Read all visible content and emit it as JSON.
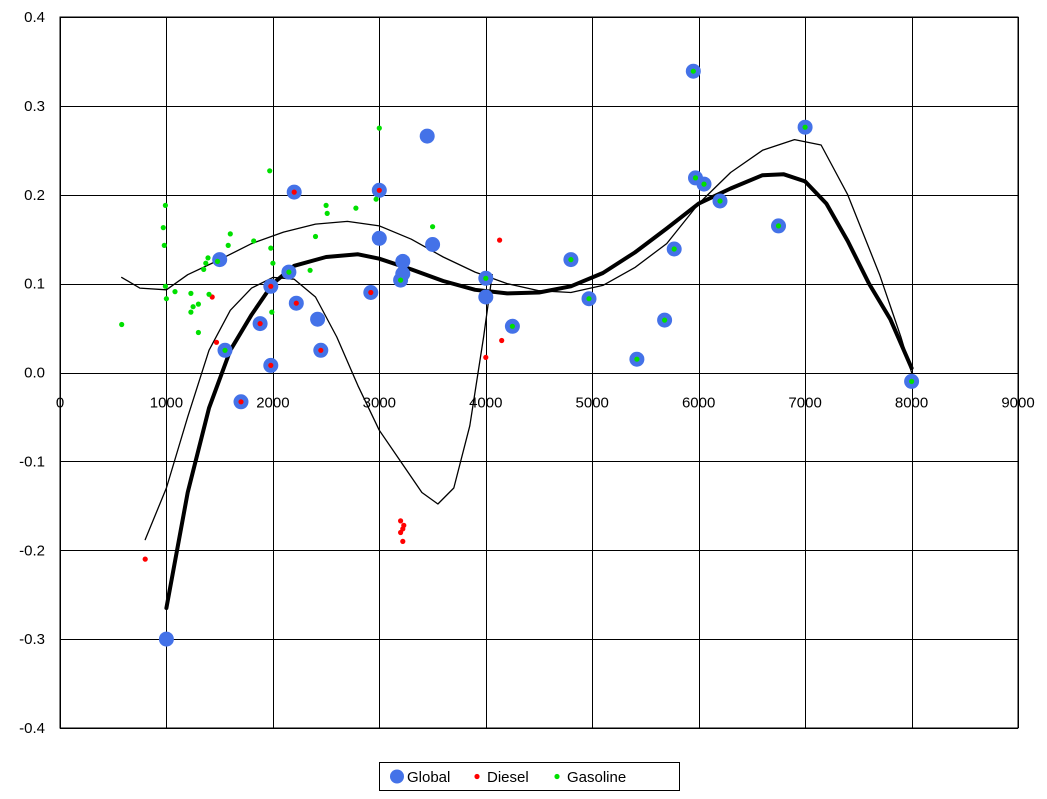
{
  "chart_data": {
    "type": "scatter",
    "title": "",
    "xlabel": "",
    "ylabel": "",
    "xlim": [
      0,
      9000
    ],
    "ylim": [
      -0.4,
      0.4
    ],
    "xticks": [
      0,
      1000,
      2000,
      3000,
      4000,
      5000,
      6000,
      7000,
      8000,
      9000
    ],
    "xtick_labels": [
      "0",
      "1000",
      "2000",
      "3000",
      "4000",
      "5000",
      "6000",
      "7000",
      "8000",
      "9000"
    ],
    "yticks": [
      -0.4,
      -0.3,
      -0.2,
      -0.1,
      0.0,
      0.1,
      0.2,
      0.3,
      0.4
    ],
    "ytick_labels": [
      "-0.4",
      "-0.3",
      "-0.2",
      "-0.1",
      "0.0",
      "0.1",
      "0.2",
      "0.3",
      "0.4"
    ],
    "grid": true,
    "legend_position": "bottom",
    "series": [
      {
        "name": "Global",
        "color": "#4472e8",
        "marker": "large-dot",
        "points": [
          [
            1000,
            -0.3
          ],
          [
            1500,
            0.127
          ],
          [
            1550,
            0.025
          ],
          [
            1700,
            -0.033
          ],
          [
            1880,
            0.055
          ],
          [
            1980,
            0.097
          ],
          [
            1980,
            0.008
          ],
          [
            2150,
            0.113
          ],
          [
            2200,
            0.203
          ],
          [
            2220,
            0.078
          ],
          [
            2420,
            0.06
          ],
          [
            2450,
            0.025
          ],
          [
            2920,
            0.09
          ],
          [
            3000,
            0.205
          ],
          [
            3000,
            0.151
          ],
          [
            3200,
            0.104
          ],
          [
            3220,
            0.125
          ],
          [
            3220,
            0.111
          ],
          [
            3450,
            0.266
          ],
          [
            3500,
            0.144
          ],
          [
            4000,
            0.106
          ],
          [
            4000,
            0.085
          ],
          [
            4250,
            0.052
          ],
          [
            4800,
            0.127
          ],
          [
            4970,
            0.083
          ],
          [
            5420,
            0.015
          ],
          [
            5680,
            0.059
          ],
          [
            5770,
            0.139
          ],
          [
            5950,
            0.339
          ],
          [
            5970,
            0.219
          ],
          [
            6050,
            0.212
          ],
          [
            6200,
            0.193
          ],
          [
            6750,
            0.165
          ],
          [
            7000,
            0.276
          ],
          [
            8000,
            -0.01
          ]
        ]
      },
      {
        "name": "Diesel",
        "color": "#ff0000",
        "marker": "small-dot",
        "points": [
          [
            800,
            -0.21
          ],
          [
            1430,
            0.085
          ],
          [
            1470,
            0.034
          ],
          [
            1700,
            -0.033
          ],
          [
            1880,
            0.055
          ],
          [
            1980,
            0.097
          ],
          [
            1980,
            0.008
          ],
          [
            2200,
            0.203
          ],
          [
            2220,
            0.078
          ],
          [
            2450,
            0.025
          ],
          [
            2920,
            0.09
          ],
          [
            3000,
            0.205
          ],
          [
            3200,
            -0.167
          ],
          [
            3200,
            -0.18
          ],
          [
            3220,
            -0.176
          ],
          [
            3220,
            -0.19
          ],
          [
            3230,
            -0.172
          ],
          [
            4000,
            0.017
          ],
          [
            4130,
            0.149
          ],
          [
            4150,
            0.036
          ]
        ]
      },
      {
        "name": "Gasoline",
        "color": "#00e000",
        "marker": "small-dot",
        "points": [
          [
            580,
            0.054
          ],
          [
            970,
            0.163
          ],
          [
            980,
            0.143
          ],
          [
            990,
            0.188
          ],
          [
            990,
            0.097
          ],
          [
            1000,
            0.083
          ],
          [
            1080,
            0.091
          ],
          [
            1230,
            0.089
          ],
          [
            1230,
            0.068
          ],
          [
            1250,
            0.074
          ],
          [
            1300,
            0.077
          ],
          [
            1300,
            0.045
          ],
          [
            1350,
            0.116
          ],
          [
            1370,
            0.123
          ],
          [
            1390,
            0.129
          ],
          [
            1400,
            0.088
          ],
          [
            1480,
            0.125
          ],
          [
            1550,
            0.025
          ],
          [
            1580,
            0.143
          ],
          [
            1600,
            0.156
          ],
          [
            1820,
            0.148
          ],
          [
            1970,
            0.227
          ],
          [
            1980,
            0.14
          ],
          [
            2000,
            0.123
          ],
          [
            1990,
            0.068
          ],
          [
            2150,
            0.113
          ],
          [
            2350,
            0.115
          ],
          [
            2400,
            0.153
          ],
          [
            2500,
            0.188
          ],
          [
            2510,
            0.179
          ],
          [
            2780,
            0.185
          ],
          [
            2970,
            0.195
          ],
          [
            3000,
            0.275
          ],
          [
            3200,
            0.104
          ],
          [
            3500,
            0.164
          ],
          [
            4000,
            0.106
          ],
          [
            4250,
            0.052
          ],
          [
            4800,
            0.127
          ],
          [
            4970,
            0.083
          ],
          [
            5420,
            0.015
          ],
          [
            5680,
            0.059
          ],
          [
            5770,
            0.139
          ],
          [
            5950,
            0.339
          ],
          [
            5970,
            0.219
          ],
          [
            6050,
            0.212
          ],
          [
            6200,
            0.193
          ],
          [
            6750,
            0.165
          ],
          [
            7000,
            0.276
          ],
          [
            8000,
            -0.01
          ]
        ]
      }
    ],
    "trendlines": [
      {
        "style": "thick",
        "color": "#000000",
        "points": [
          [
            1000,
            -0.265
          ],
          [
            1200,
            -0.135
          ],
          [
            1400,
            -0.04
          ],
          [
            1600,
            0.025
          ],
          [
            1800,
            0.065
          ],
          [
            2000,
            0.1
          ],
          [
            2200,
            0.12
          ],
          [
            2500,
            0.13
          ],
          [
            2800,
            0.133
          ],
          [
            3000,
            0.128
          ],
          [
            3300,
            0.116
          ],
          [
            3600,
            0.103
          ],
          [
            3900,
            0.093
          ],
          [
            4200,
            0.089
          ],
          [
            4500,
            0.09
          ],
          [
            4800,
            0.097
          ],
          [
            5100,
            0.112
          ],
          [
            5400,
            0.135
          ],
          [
            5700,
            0.162
          ],
          [
            6000,
            0.19
          ],
          [
            6300,
            0.207
          ],
          [
            6600,
            0.222
          ],
          [
            6800,
            0.223
          ],
          [
            7000,
            0.215
          ],
          [
            7200,
            0.19
          ],
          [
            7400,
            0.148
          ],
          [
            7600,
            0.1
          ],
          [
            7800,
            0.06
          ],
          [
            8000,
            0.005
          ]
        ]
      },
      {
        "style": "thin",
        "color": "#000000",
        "points": [
          [
            800,
            -0.188
          ],
          [
            1000,
            -0.13
          ],
          [
            1200,
            -0.05
          ],
          [
            1400,
            0.025
          ],
          [
            1600,
            0.07
          ],
          [
            1800,
            0.095
          ],
          [
            2000,
            0.107
          ],
          [
            2200,
            0.105
          ],
          [
            2400,
            0.085
          ],
          [
            2600,
            0.04
          ],
          [
            2800,
            -0.015
          ],
          [
            3000,
            -0.065
          ],
          [
            3200,
            -0.1
          ],
          [
            3400,
            -0.135
          ],
          [
            3550,
            -0.148
          ],
          [
            3700,
            -0.13
          ],
          [
            3850,
            -0.06
          ],
          [
            3980,
            0.04
          ],
          [
            4060,
            0.11
          ]
        ]
      },
      {
        "style": "thin",
        "color": "#000000",
        "points": [
          [
            580,
            0.107
          ],
          [
            750,
            0.095
          ],
          [
            1000,
            0.093
          ],
          [
            1200,
            0.11
          ],
          [
            1500,
            0.127
          ],
          [
            1800,
            0.145
          ],
          [
            2100,
            0.158
          ],
          [
            2400,
            0.167
          ],
          [
            2700,
            0.17
          ],
          [
            3000,
            0.165
          ],
          [
            3300,
            0.15
          ],
          [
            3600,
            0.13
          ],
          [
            3900,
            0.113
          ],
          [
            4200,
            0.1
          ],
          [
            4500,
            0.092
          ],
          [
            4800,
            0.09
          ],
          [
            5100,
            0.098
          ],
          [
            5400,
            0.118
          ],
          [
            5700,
            0.145
          ],
          [
            6000,
            0.19
          ],
          [
            6300,
            0.225
          ],
          [
            6600,
            0.25
          ],
          [
            6900,
            0.262
          ],
          [
            7150,
            0.256
          ],
          [
            7400,
            0.2
          ],
          [
            7700,
            0.11
          ],
          [
            7900,
            0.04
          ],
          [
            8000,
            0.0
          ]
        ]
      }
    ]
  }
}
